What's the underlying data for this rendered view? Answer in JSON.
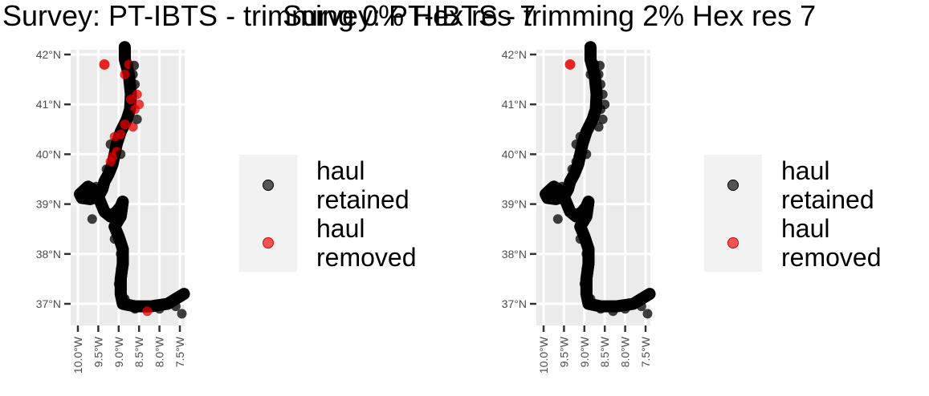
{
  "panels": [
    {
      "title": "Survey: PT-IBTS - trimming 0% Hex res 7",
      "y_ticks": [
        "42°N",
        "41°N",
        "40°N",
        "39°N",
        "38°N",
        "37°N"
      ],
      "x_ticks": [
        "10.0°W",
        "9.5°W",
        "9.0°W",
        "8.5°W",
        "8.0°W",
        "7.5°W"
      ],
      "legend": [
        {
          "line1": "haul",
          "line2": "retained",
          "color": "#000000"
        },
        {
          "line1": "haul",
          "line2": "removed",
          "color": "#e00000"
        }
      ]
    },
    {
      "title": "Survey: PT-IBTS - trimming 2% Hex res 7",
      "y_ticks": [
        "42°N",
        "41°N",
        "40°N",
        "39°N",
        "38°N",
        "37°N"
      ],
      "x_ticks": [
        "10.0°W",
        "9.5°W",
        "9.0°W",
        "8.5°W",
        "8.0°W",
        "7.5°W"
      ],
      "legend": [
        {
          "line1": "haul",
          "line2": "retained",
          "color": "#000000"
        },
        {
          "line1": "haul",
          "line2": "removed",
          "color": "#e00000"
        }
      ]
    }
  ],
  "map_data": {
    "lon_range": [
      -10.2,
      -7.2
    ],
    "lat_range": [
      36.5,
      42.2
    ],
    "retained_color": "#000000",
    "removed_color": "#e00000"
  }
}
